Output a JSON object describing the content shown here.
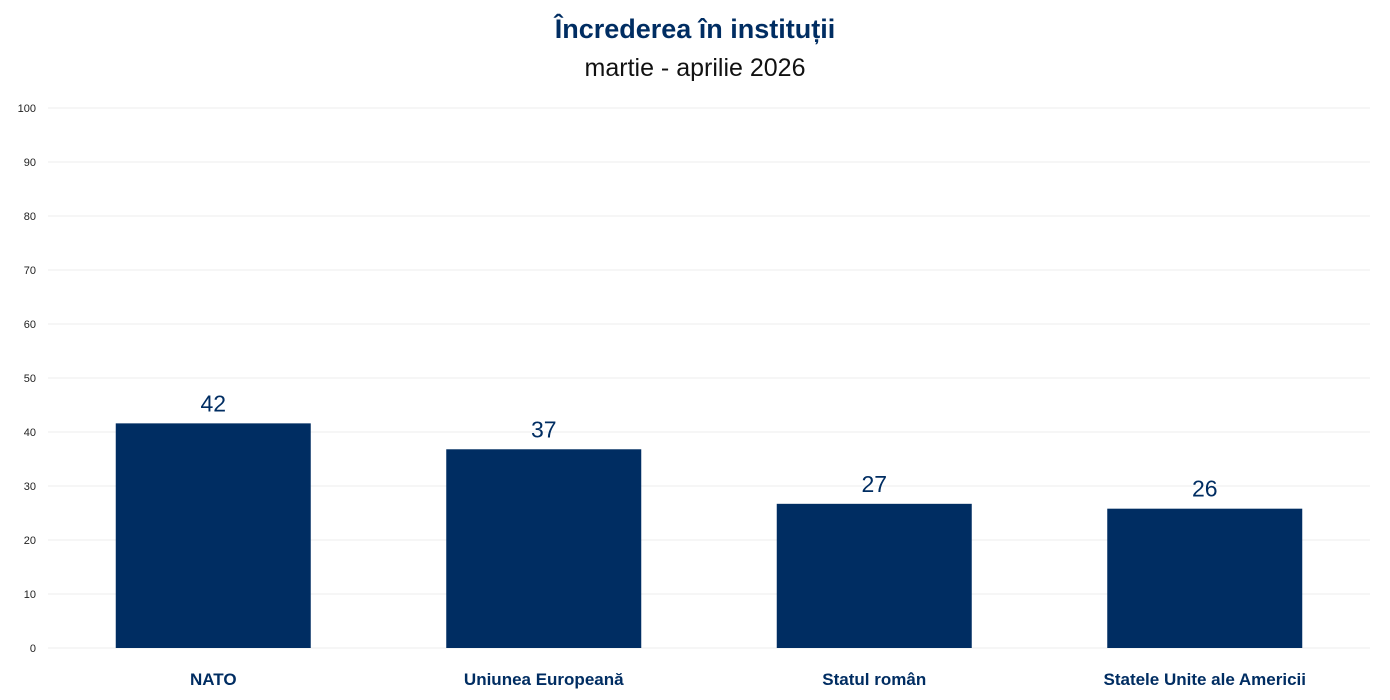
{
  "chart_data": {
    "type": "bar",
    "title": "Încrederea în instituții",
    "subtitle": "martie - aprilie 2026",
    "categories": [
      "NATO",
      "Uniunea Europeană",
      "Statul român",
      "Statele Unite ale Americii"
    ],
    "values": [
      41.6,
      36.8,
      26.7,
      25.8
    ],
    "data_labels": [
      "42",
      "37",
      "27",
      "26"
    ],
    "xlabel": "",
    "ylabel": "",
    "ylim": [
      0,
      100
    ],
    "yticks": [
      0,
      10,
      20,
      30,
      40,
      50,
      60,
      70,
      80,
      90,
      100
    ],
    "grid": true,
    "legend": "none",
    "bar_color": "#002d62"
  }
}
